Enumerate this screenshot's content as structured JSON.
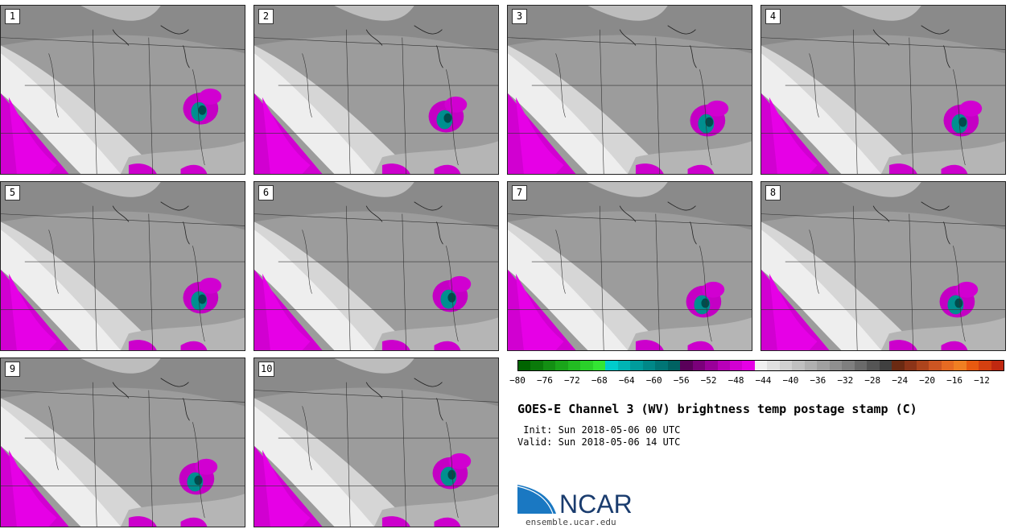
{
  "panels": [
    {
      "label": "1"
    },
    {
      "label": "2"
    },
    {
      "label": "3"
    },
    {
      "label": "4"
    },
    {
      "label": "5"
    },
    {
      "label": "6"
    },
    {
      "label": "7"
    },
    {
      "label": "8"
    },
    {
      "label": "9"
    },
    {
      "label": "10"
    }
  ],
  "colorbar": {
    "ticks": [
      "−80",
      "−76",
      "−72",
      "−68",
      "−64",
      "−60",
      "−56",
      "−52",
      "−48",
      "−44",
      "−40",
      "−36",
      "−32",
      "−28",
      "−24",
      "−20",
      "−16",
      "−12"
    ],
    "colors": [
      "#006400",
      "#0a7a0a",
      "#138f13",
      "#1aa51a",
      "#22bb22",
      "#2ad12a",
      "#33e633",
      "#00cccc",
      "#00b4b4",
      "#009c9c",
      "#008888",
      "#007575",
      "#006262",
      "#5a005a",
      "#7a007a",
      "#990099",
      "#b800b8",
      "#d100d1",
      "#e600e6",
      "#f0f0f0",
      "#e0e0e0",
      "#d0d0d0",
      "#c0c0c0",
      "#b0b0b0",
      "#a0a0a0",
      "#8f8f8f",
      "#7f7f7f",
      "#6a6a6a",
      "#555555",
      "#404040",
      "#6b2a12",
      "#8c3418",
      "#ad441c",
      "#cc5522",
      "#e66a22",
      "#f07f22",
      "#e85a10",
      "#d44010",
      "#c02810"
    ]
  },
  "title": "GOES-E Channel 3 (WV) brightness temp postage stamp (C)",
  "init_text": " Init: Sun 2018-05-06 00 UTC",
  "valid_text": "Valid: Sun 2018-05-06 14 UTC",
  "logo": {
    "name": "NCAR",
    "url": "ensemble.ucar.edu"
  }
}
